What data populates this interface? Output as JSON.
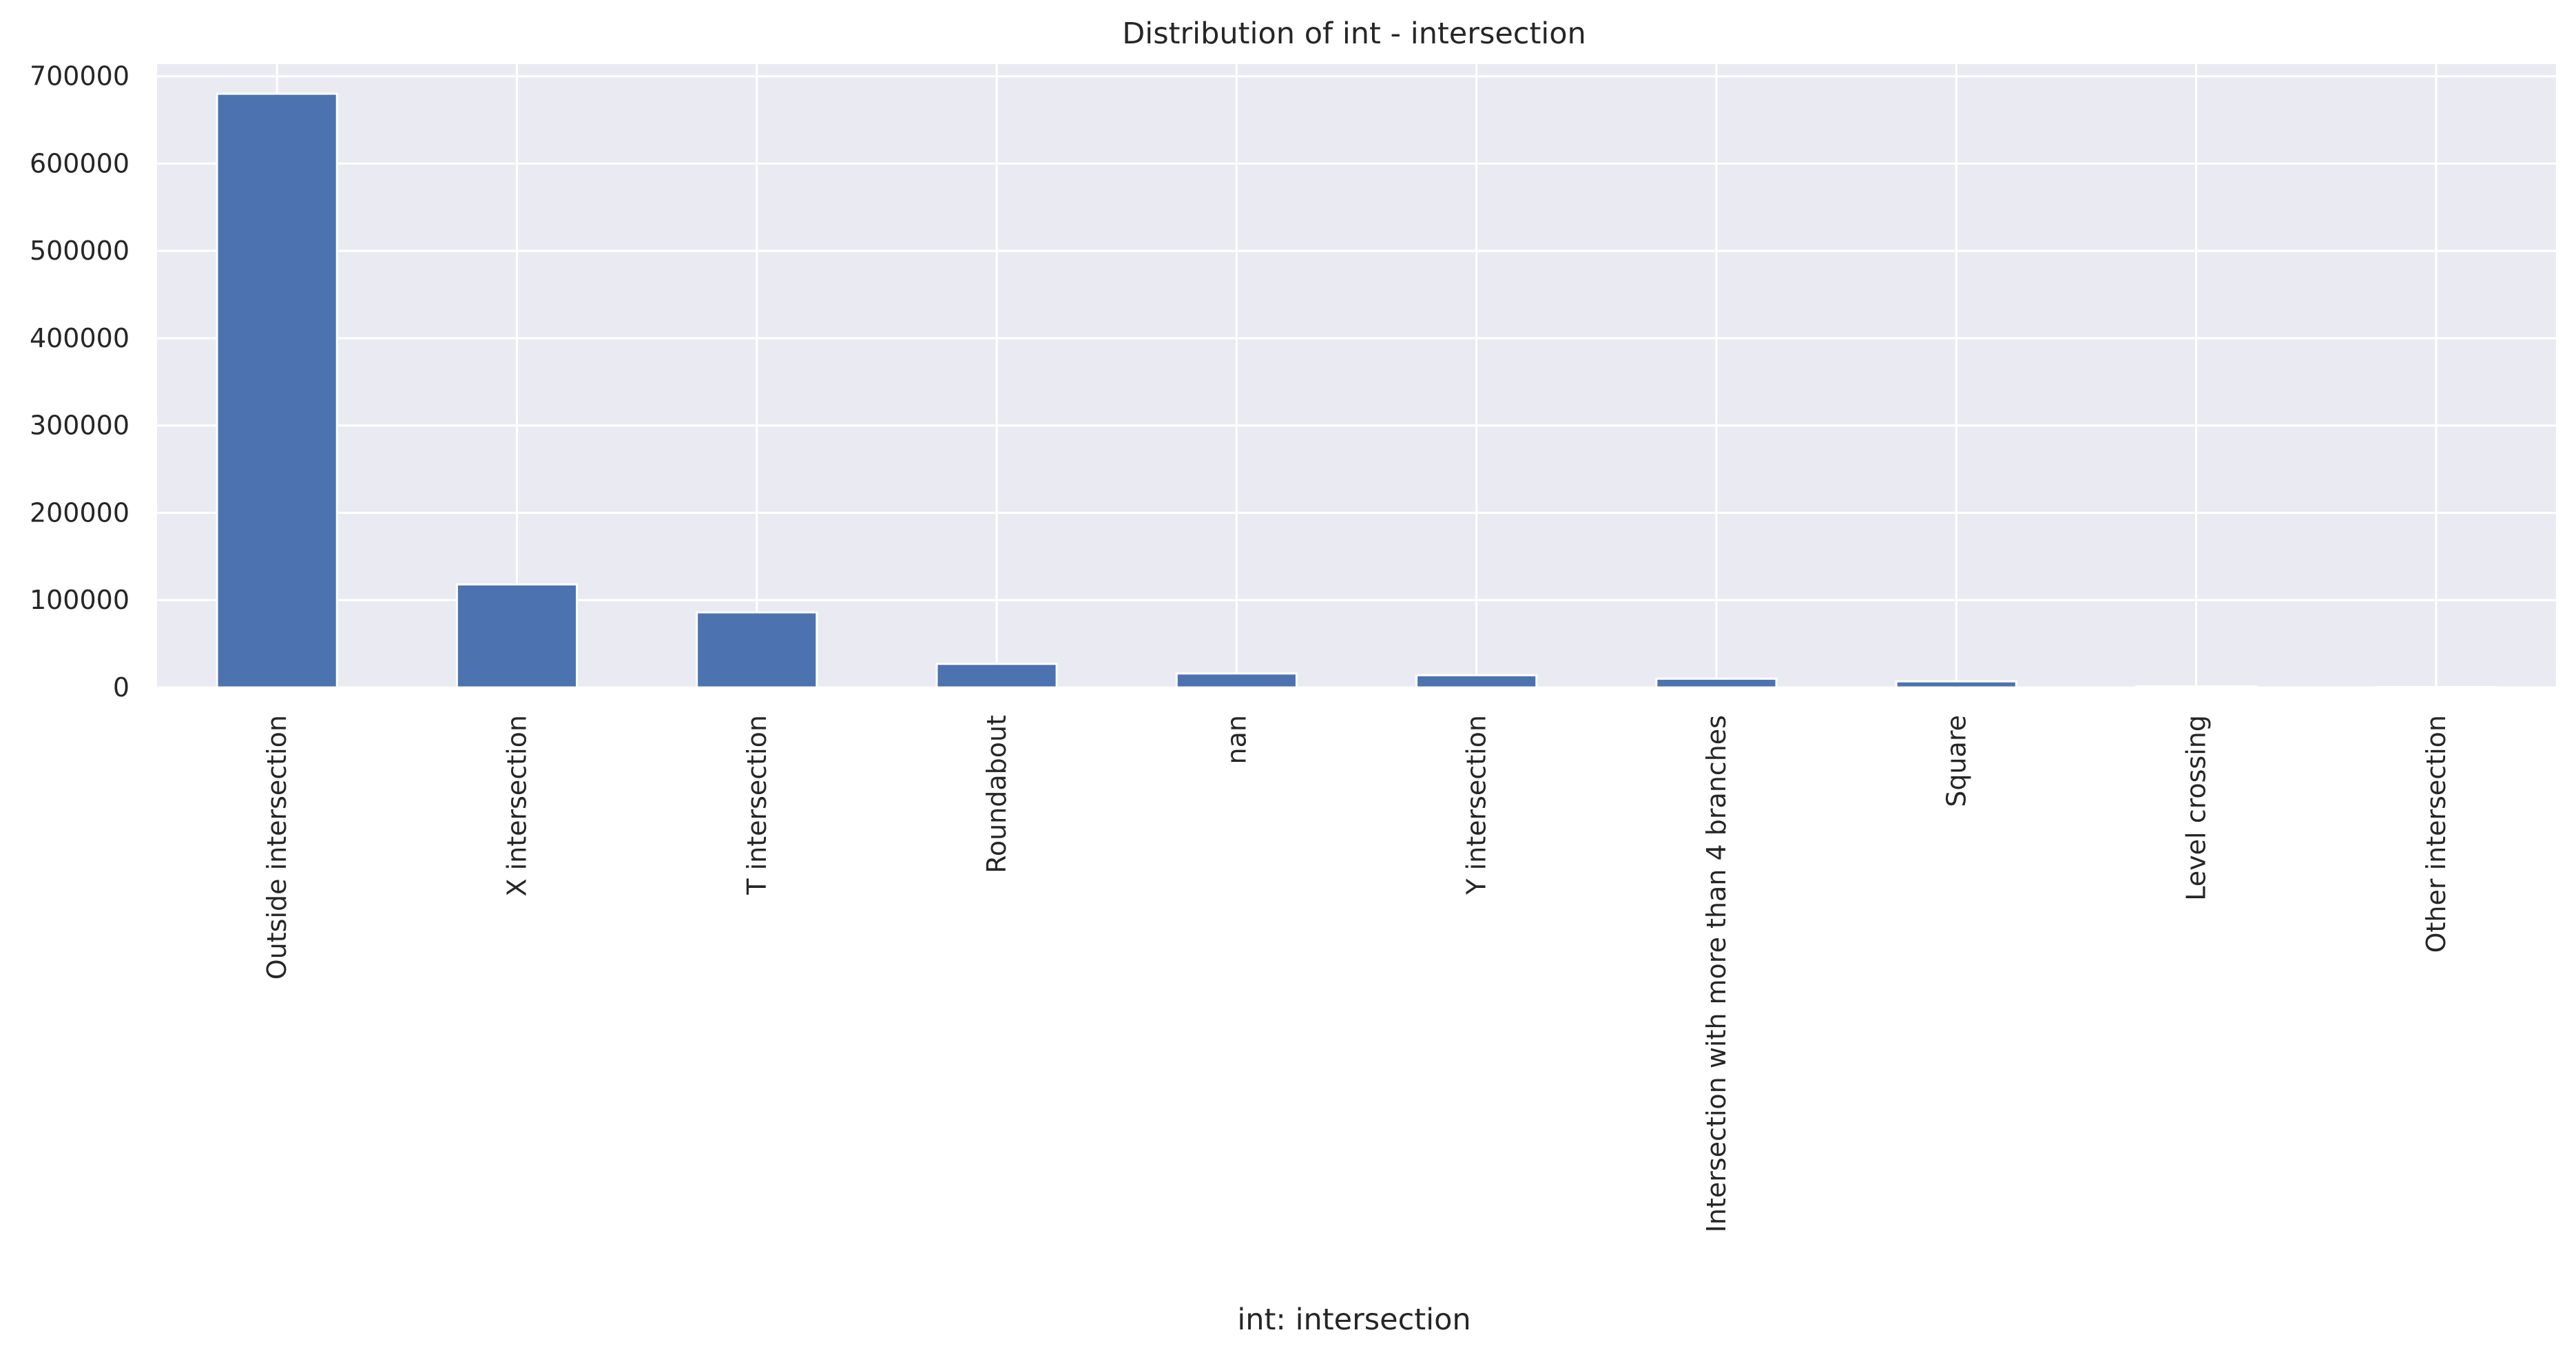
{
  "chart_data": {
    "type": "bar",
    "title": "Distribution of int - intersection",
    "xlabel": "int: intersection",
    "ylabel": "",
    "categories": [
      "Outside intersection",
      "X intersection",
      "T intersection",
      "Roundabout",
      "nan",
      "Y intersection",
      "Intersection with more than 4 branches",
      "Square",
      "Level crossing",
      "Other intersection"
    ],
    "values": [
      680000,
      118000,
      86000,
      27000,
      16000,
      14000,
      10000,
      7000,
      1200,
      500
    ],
    "ylim": [
      0,
      714000
    ],
    "yticks": [
      0,
      100000,
      200000,
      300000,
      400000,
      500000,
      600000,
      700000
    ],
    "ytick_labels": [
      "0",
      "100000",
      "200000",
      "300000",
      "400000",
      "500000",
      "600000",
      "700000"
    ],
    "grid": true,
    "colors": {
      "bar": "#4c72b0",
      "plot_background": "#eaeaf2",
      "grid": "#ffffff",
      "text": "#262626"
    }
  }
}
